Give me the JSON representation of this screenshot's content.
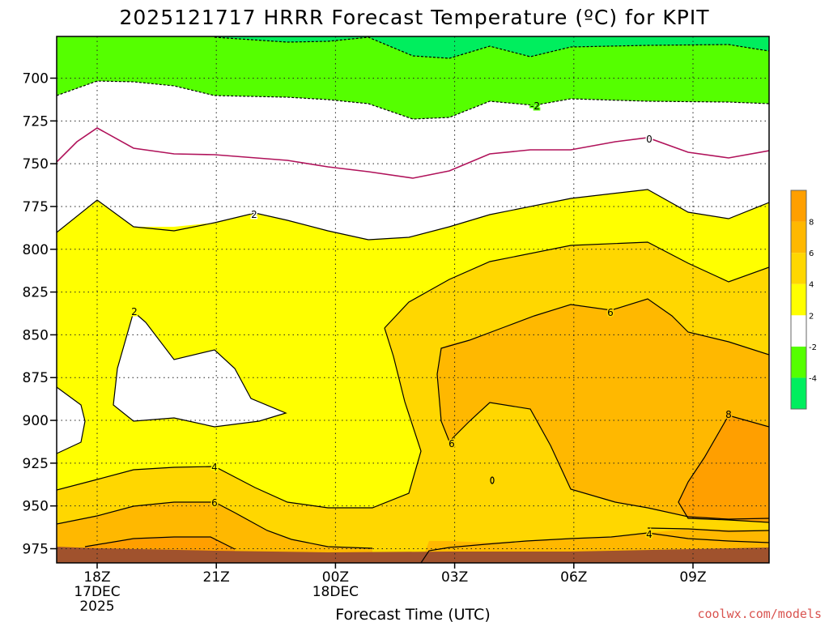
{
  "chart_data": {
    "type": "contour",
    "title": "2025121717 HRRR Forecast Temperature (ºC) for KPIT",
    "xlabel": "Forecast Time (UTC)",
    "ylabel": "",
    "credit": "coolwx.com/models",
    "y_ticks": [
      700,
      725,
      750,
      775,
      800,
      825,
      850,
      875,
      900,
      925,
      950,
      975
    ],
    "y_tick_labels": [
      "700",
      "725",
      "750",
      "775",
      "800",
      "825",
      "850",
      "875",
      "900",
      "925",
      "950",
      "975"
    ],
    "x_ticks": [
      {
        "label": "18Z",
        "sub1": "17DEC",
        "sub2": "2025"
      },
      {
        "label": "21Z",
        "sub1": "",
        "sub2": ""
      },
      {
        "label": "00Z",
        "sub1": "18DEC",
        "sub2": ""
      },
      {
        "label": "03Z",
        "sub1": "",
        "sub2": ""
      },
      {
        "label": "06Z",
        "sub1": "",
        "sub2": ""
      },
      {
        "label": "09Z",
        "sub1": "",
        "sub2": ""
      }
    ],
    "contour_levels": [
      -2,
      0,
      2,
      4,
      6,
      8
    ],
    "contour_labels": [
      "-2",
      "0",
      "2",
      "2",
      "4",
      "6",
      "6",
      "6",
      "8",
      "4",
      "0"
    ],
    "colorbar": {
      "colors": [
        "#00ee5e",
        "#55ff00",
        "#ffffff",
        "#ffff00",
        "#ffd700",
        "#ffb800",
        "#ff9f00"
      ],
      "tick_labels": [
        "-4",
        "-2",
        "2",
        "4",
        "6",
        "8"
      ]
    },
    "colors": {
      "below_minus2": "#55ff00",
      "below_minus4": "#00ee5e",
      "range_minus2_2": "#ffffff",
      "range_2_4": "#ffff00",
      "range_4_6": "#ffd700",
      "range_6_8": "#ffb800",
      "above_8": "#ff9f00",
      "zero_line": "#b0125a",
      "ground": "#a0522d"
    },
    "grid": true
  }
}
